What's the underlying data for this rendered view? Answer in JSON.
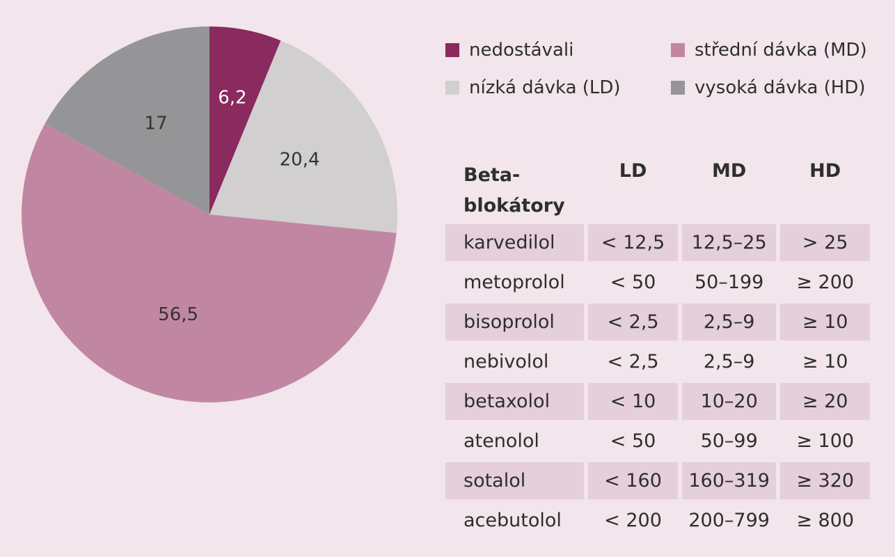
{
  "chart_data": [
    {
      "type": "pie",
      "title": "",
      "slices": [
        {
          "label": "nedostávali",
          "value": 6.2,
          "display": "6,2",
          "color": "#8a2a5e",
          "text_color": "#ffffff"
        },
        {
          "label": "nízká dávka (LD)",
          "value": 20.4,
          "display": "20,4",
          "color": "#d1cfd0",
          "text_color": "#333333"
        },
        {
          "label": "střední dávka (MD)",
          "value": 56.5,
          "display": "56,5",
          "color": "#c187a2",
          "text_color": "#333333"
        },
        {
          "label": "vysoká dávka (HD)",
          "value": 17,
          "display": "17",
          "color": "#959597",
          "text_color": "#333333"
        }
      ],
      "start_angle_deg": 0,
      "direction": "clockwise"
    },
    {
      "type": "table",
      "headers": [
        "Beta-\nblokátory",
        "LD",
        "MD",
        "HD"
      ],
      "rows": [
        [
          "karvedilol",
          "< 12,5",
          "12,5–25",
          "> 25"
        ],
        [
          "metoprolol",
          "< 50",
          "50–199",
          "≥ 200"
        ],
        [
          "bisoprolol",
          "< 2,5",
          "2,5–9",
          "≥ 10"
        ],
        [
          "nebivolol",
          "< 2,5",
          "2,5–9",
          "≥ 10"
        ],
        [
          "betaxolol",
          "< 10",
          "10–20",
          "≥ 20"
        ],
        [
          "atenolol",
          "< 50",
          "50–99",
          "≥ 100"
        ],
        [
          "sotalol",
          "< 160",
          "160–319",
          "≥ 320"
        ],
        [
          "acebutolol",
          "< 200",
          "200–799",
          "≥ 800"
        ]
      ]
    }
  ],
  "legend": {
    "items": [
      {
        "label": "nedostávali",
        "color": "#8a2a5e"
      },
      {
        "label": "střední dávka (MD)",
        "color": "#c187a2"
      },
      {
        "label": "nízká dávka (LD)",
        "color": "#d1cfd0"
      },
      {
        "label": "vysoká dávka (HD)",
        "color": "#959597"
      }
    ]
  },
  "table": {
    "header": {
      "drug_line1": "Beta-",
      "drug_line2": "blokátory",
      "ld": "LD",
      "md": "MD",
      "hd": "HD"
    },
    "rows": [
      {
        "drug": "karvedilol",
        "ld": "< 12,5",
        "md": "12,5–25",
        "hd": "> 25"
      },
      {
        "drug": "metoprolol",
        "ld": "< 50",
        "md": "50–199",
        "hd": "≥ 200"
      },
      {
        "drug": "bisoprolol",
        "ld": "< 2,5",
        "md": "2,5–9",
        "hd": "≥ 10"
      },
      {
        "drug": "nebivolol",
        "ld": "< 2,5",
        "md": "2,5–9",
        "hd": "≥ 10"
      },
      {
        "drug": "betaxolol",
        "ld": "< 10",
        "md": "10–20",
        "hd": "≥ 20"
      },
      {
        "drug": "atenolol",
        "ld": "< 50",
        "md": "50–99",
        "hd": "≥ 100"
      },
      {
        "drug": "sotalol",
        "ld": "< 160",
        "md": "160–319",
        "hd": "≥ 320"
      },
      {
        "drug": "acebutolol",
        "ld": "< 200",
        "md": "200–799",
        "hd": "≥ 800"
      }
    ],
    "row_shading_color": "#e5cfdb"
  },
  "colors": {
    "background": "#f2e5ec"
  }
}
